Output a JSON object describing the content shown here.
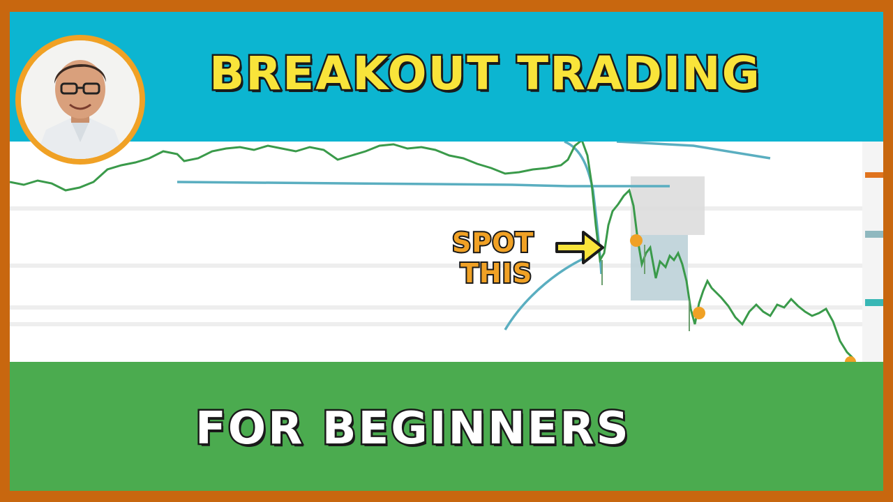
{
  "thumbnail": {
    "headline": "BREAKOUT TRADING",
    "subheadline": "FOR BEGINNERS",
    "callout_line1": "SPOT",
    "callout_line2": "THIS"
  },
  "colors": {
    "frame": "#c8670f",
    "top_band": "#0cb5d1",
    "bottom_band": "#4bab4f",
    "headline_text": "#f9e43a",
    "subheadline_text": "#ffffff",
    "callout_text": "#f0a125",
    "arrow": "#f9e43a",
    "candle_up": "#3a9a4a",
    "moving_average": "#5aaec0"
  },
  "icons": {
    "avatar": "presenter-photo",
    "arrow": "right-arrow-icon"
  }
}
